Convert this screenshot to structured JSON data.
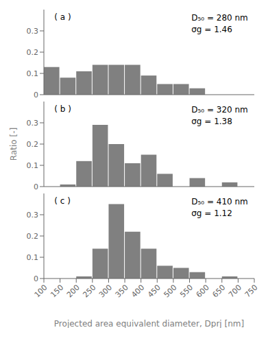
{
  "chart_data": [
    {
      "type": "histogram",
      "bins": [
        100,
        150,
        200,
        250,
        300,
        350,
        400,
        450,
        500,
        550,
        600,
        650,
        700,
        750
      ],
      "values": [
        0.13,
        0.08,
        0.11,
        0.14,
        0.14,
        0.14,
        0.09,
        0.05,
        0.05,
        0.03,
        0.0,
        0.0,
        0.0
      ],
      "color": "#808080",
      "xlim": [
        100,
        750
      ],
      "xticks": [
        100,
        150,
        200,
        250,
        300,
        350,
        400,
        450,
        500,
        550,
        600,
        650,
        700,
        750
      ],
      "ylim": [
        0,
        0.4
      ],
      "yticks": [
        0,
        0.1,
        0.2,
        0.3
      ],
      "annotations": [
        "( a )",
        "D₅₀ = 280 nm",
        "σg = 1.46"
      ],
      "tick_labels": "y"
    },
    {
      "type": "histogram",
      "bins": [
        100,
        150,
        200,
        250,
        300,
        350,
        400,
        450,
        500,
        550,
        600,
        650,
        700,
        750
      ],
      "values": [
        0.0,
        0.01,
        0.12,
        0.29,
        0.2,
        0.11,
        0.15,
        0.06,
        0.0,
        0.04,
        0.0,
        0.02,
        0.0
      ],
      "color": "#808080",
      "xlim": [
        100,
        750
      ],
      "xticks": [
        100,
        150,
        200,
        250,
        300,
        350,
        400,
        450,
        500,
        550,
        600,
        650,
        700,
        750
      ],
      "ylim": [
        0,
        0.4
      ],
      "yticks": [
        0,
        0.1,
        0.2,
        0.3
      ],
      "ylabel": "Ratio [-]",
      "annotations": [
        "( b )",
        "D₅₀ = 320 nm",
        "σg = 1.38"
      ],
      "tick_labels": "y"
    },
    {
      "type": "histogram",
      "bins": [
        100,
        150,
        200,
        250,
        300,
        350,
        400,
        450,
        500,
        550,
        600,
        650,
        700,
        750
      ],
      "values": [
        0.0,
        0.0,
        0.01,
        0.14,
        0.35,
        0.22,
        0.14,
        0.06,
        0.05,
        0.03,
        0.0,
        0.01,
        0.0
      ],
      "color": "#808080",
      "xlim": [
        100,
        750
      ],
      "xticks": [
        100,
        150,
        200,
        250,
        300,
        350,
        400,
        450,
        500,
        550,
        600,
        650,
        700,
        750
      ],
      "ylim": [
        0,
        0.4
      ],
      "yticks": [
        0,
        0.1,
        0.2,
        0.3
      ],
      "xlabel": "Projected area equivalent diameter, Dprj [nm]",
      "annotations": [
        "( c )",
        "D₅₀ = 410 nm",
        "σg = 1.12"
      ]
    }
  ]
}
